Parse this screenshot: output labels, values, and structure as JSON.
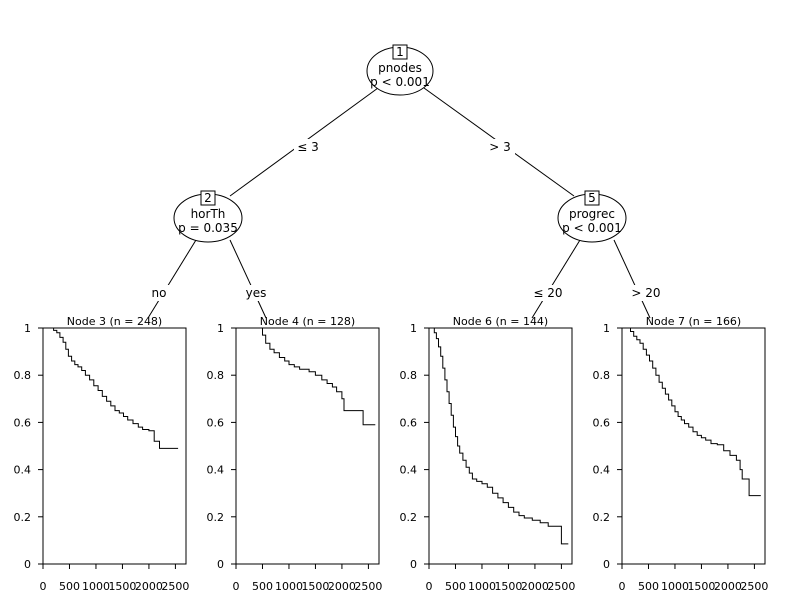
{
  "chart_data": {
    "type": "tree-survival",
    "inner_nodes": [
      {
        "id": "1",
        "var": "pnodes",
        "p": "p < 0.001"
      },
      {
        "id": "2",
        "var": "horTh",
        "p": "p = 0.035"
      },
      {
        "id": "5",
        "var": "progrec",
        "p": "p < 0.001"
      }
    ],
    "edges": [
      {
        "from": "1",
        "to": "2",
        "label": "≤ 3"
      },
      {
        "from": "1",
        "to": "5",
        "label": "> 3"
      },
      {
        "from": "2",
        "to": "3",
        "label": "no"
      },
      {
        "from": "2",
        "to": "4",
        "label": "yes"
      },
      {
        "from": "5",
        "to": "6",
        "label": "≤ 20"
      },
      {
        "from": "5",
        "to": "7",
        "label": "> 20"
      }
    ],
    "x_ticks": [
      "0",
      "500",
      "1000",
      "1500",
      "2000",
      "2500"
    ],
    "y_ticks": [
      "0",
      "0.2",
      "0.4",
      "0.6",
      "0.8",
      "1"
    ],
    "xlim": [
      0,
      2700
    ],
    "ylim": [
      0,
      1
    ],
    "terminal_nodes": [
      {
        "id": "3",
        "title": "Node 3 (n = 248)",
        "curve": [
          [
            0,
            1
          ],
          [
            120,
            1
          ],
          [
            200,
            0.99
          ],
          [
            260,
            0.98
          ],
          [
            320,
            0.96
          ],
          [
            380,
            0.94
          ],
          [
            430,
            0.91
          ],
          [
            480,
            0.88
          ],
          [
            540,
            0.86
          ],
          [
            600,
            0.845
          ],
          [
            660,
            0.835
          ],
          [
            730,
            0.82
          ],
          [
            800,
            0.8
          ],
          [
            880,
            0.78
          ],
          [
            960,
            0.755
          ],
          [
            1040,
            0.735
          ],
          [
            1120,
            0.71
          ],
          [
            1200,
            0.69
          ],
          [
            1280,
            0.67
          ],
          [
            1360,
            0.65
          ],
          [
            1440,
            0.64
          ],
          [
            1520,
            0.625
          ],
          [
            1600,
            0.61
          ],
          [
            1700,
            0.595
          ],
          [
            1800,
            0.58
          ],
          [
            1880,
            0.57
          ],
          [
            2000,
            0.565
          ],
          [
            2100,
            0.52
          ],
          [
            2200,
            0.49
          ],
          [
            2550,
            0.49
          ]
        ]
      },
      {
        "id": "4",
        "title": "Node 4 (n = 128)",
        "curve": [
          [
            0,
            1
          ],
          [
            450,
            1
          ],
          [
            500,
            0.97
          ],
          [
            560,
            0.935
          ],
          [
            640,
            0.91
          ],
          [
            720,
            0.895
          ],
          [
            820,
            0.875
          ],
          [
            920,
            0.86
          ],
          [
            1000,
            0.845
          ],
          [
            1100,
            0.835
          ],
          [
            1200,
            0.825
          ],
          [
            1380,
            0.815
          ],
          [
            1500,
            0.8
          ],
          [
            1620,
            0.78
          ],
          [
            1720,
            0.765
          ],
          [
            1820,
            0.75
          ],
          [
            1900,
            0.73
          ],
          [
            2000,
            0.7
          ],
          [
            2040,
            0.65
          ],
          [
            2400,
            0.59
          ],
          [
            2630,
            0.59
          ]
        ]
      },
      {
        "id": "6",
        "title": "Node 6 (n = 144)",
        "curve": [
          [
            0,
            1
          ],
          [
            60,
            1
          ],
          [
            100,
            0.98
          ],
          [
            140,
            0.955
          ],
          [
            180,
            0.92
          ],
          [
            220,
            0.88
          ],
          [
            260,
            0.83
          ],
          [
            300,
            0.78
          ],
          [
            340,
            0.73
          ],
          [
            380,
            0.68
          ],
          [
            420,
            0.63
          ],
          [
            460,
            0.58
          ],
          [
            500,
            0.54
          ],
          [
            540,
            0.5
          ],
          [
            580,
            0.47
          ],
          [
            640,
            0.44
          ],
          [
            700,
            0.41
          ],
          [
            760,
            0.385
          ],
          [
            820,
            0.36
          ],
          [
            900,
            0.35
          ],
          [
            1000,
            0.34
          ],
          [
            1100,
            0.325
          ],
          [
            1200,
            0.3
          ],
          [
            1300,
            0.28
          ],
          [
            1400,
            0.26
          ],
          [
            1500,
            0.24
          ],
          [
            1600,
            0.22
          ],
          [
            1700,
            0.205
          ],
          [
            1800,
            0.195
          ],
          [
            1950,
            0.185
          ],
          [
            2100,
            0.175
          ],
          [
            2250,
            0.16
          ],
          [
            2450,
            0.16
          ],
          [
            2500,
            0.085
          ],
          [
            2630,
            0.085
          ]
        ]
      },
      {
        "id": "7",
        "title": "Node 7 (n = 166)",
        "curve": [
          [
            0,
            1
          ],
          [
            100,
            1
          ],
          [
            160,
            0.985
          ],
          [
            220,
            0.965
          ],
          [
            280,
            0.95
          ],
          [
            340,
            0.935
          ],
          [
            400,
            0.91
          ],
          [
            460,
            0.885
          ],
          [
            520,
            0.86
          ],
          [
            580,
            0.83
          ],
          [
            640,
            0.8
          ],
          [
            700,
            0.77
          ],
          [
            760,
            0.745
          ],
          [
            820,
            0.72
          ],
          [
            880,
            0.695
          ],
          [
            940,
            0.67
          ],
          [
            1000,
            0.645
          ],
          [
            1060,
            0.625
          ],
          [
            1120,
            0.61
          ],
          [
            1180,
            0.595
          ],
          [
            1260,
            0.58
          ],
          [
            1340,
            0.56
          ],
          [
            1420,
            0.545
          ],
          [
            1500,
            0.535
          ],
          [
            1580,
            0.525
          ],
          [
            1680,
            0.51
          ],
          [
            1800,
            0.505
          ],
          [
            1920,
            0.48
          ],
          [
            2040,
            0.46
          ],
          [
            2160,
            0.44
          ],
          [
            2230,
            0.4
          ],
          [
            2270,
            0.36
          ],
          [
            2400,
            0.29
          ],
          [
            2620,
            0.29
          ]
        ]
      }
    ]
  }
}
